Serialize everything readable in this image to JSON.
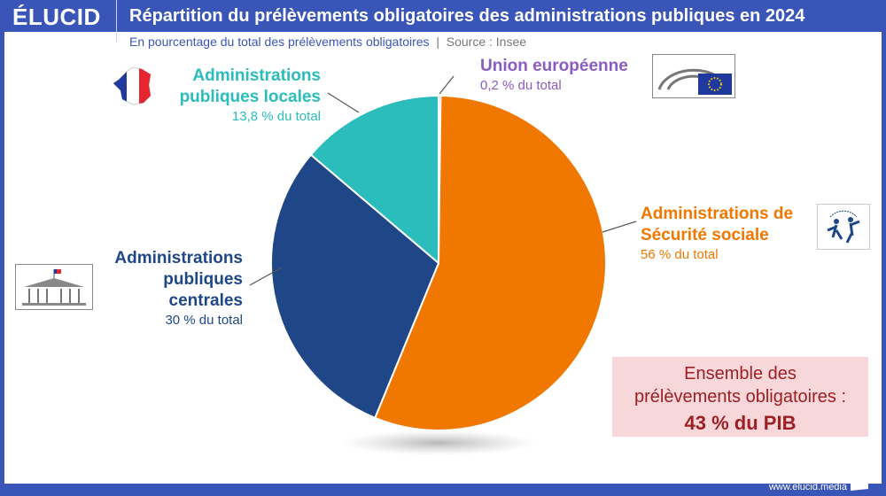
{
  "header": {
    "logo": "ÉLUCID",
    "title": "Répartition du prélèvements obligatoires des administrations publiques en 2024",
    "subtitle": "En pourcentage du total des prélèvements obligatoires",
    "separator": "|",
    "source": "Source : Insee"
  },
  "footer": {
    "url": "www.elucid.media"
  },
  "total_box": {
    "line1": "Ensemble des",
    "line2": "prélèvements obligatoires :",
    "value": "43 % du PIB"
  },
  "chart_data": {
    "type": "pie",
    "title": "Répartition du prélèvements obligatoires des administrations publiques en 2024",
    "unit": "% du total",
    "slices": [
      {
        "name": "Union européenne",
        "value": 0.2,
        "label": "0,2 % du total",
        "color": "#8a5cc0"
      },
      {
        "name": "Administrations de Sécurité sociale",
        "value": 56,
        "label": "56 % du total",
        "color": "#f07800"
      },
      {
        "name": "Administrations publiques centrales",
        "value": 30,
        "label": "30 % du total",
        "color": "#1f4788"
      },
      {
        "name": "Administrations publiques locales",
        "value": 13.8,
        "label": "13,8 % du total",
        "color": "#2bbcbc"
      }
    ]
  }
}
